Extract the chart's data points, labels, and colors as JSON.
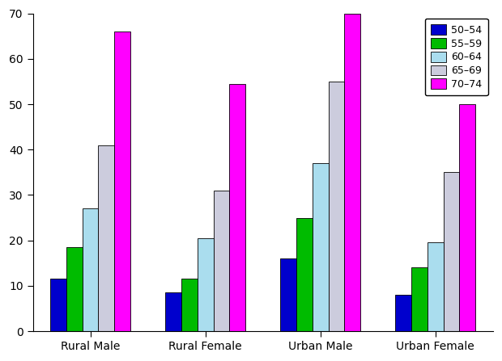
{
  "categories": [
    "Rural Male",
    "Rural Female",
    "Urban Male",
    "Urban Female"
  ],
  "age_groups": [
    "50-54",
    "55-59",
    "60-64",
    "65-69",
    "70-74"
  ],
  "values": {
    "50-54": [
      11.5,
      8.5,
      16,
      8
    ],
    "55-59": [
      18.5,
      11.5,
      25,
      14
    ],
    "60-64": [
      27,
      20.5,
      37,
      19.5
    ],
    "65-69": [
      41,
      31,
      55,
      35
    ],
    "70-74": [
      66,
      54.5,
      70,
      50
    ]
  },
  "colors": {
    "50-54": "#0000CD",
    "55-59": "#00BB00",
    "60-64": "#AADDEE",
    "65-69": "#CCCCDD",
    "70-74": "#FF00FF"
  },
  "ylim": [
    0,
    70
  ],
  "yticks": [
    0,
    10,
    20,
    30,
    40,
    50,
    60,
    70
  ],
  "background_color": "#FFFFFF",
  "legend_labels": [
    "50–54",
    "55–59",
    "60–64",
    "65–69",
    "70–74"
  ]
}
